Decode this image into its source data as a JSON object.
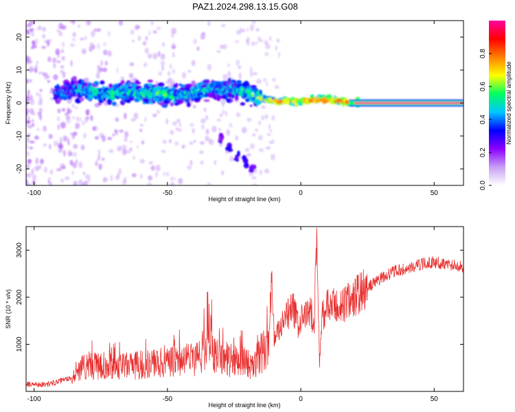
{
  "page": {
    "title": "PAZ1.2024.298.13.15.G08"
  },
  "chart_data": [
    {
      "type": "heatmap",
      "title": "PAZ1.2024.298.13.15.G08",
      "xlabel": "Height of straight line (km)",
      "ylabel": "Frequency (Hz)",
      "xlim": [
        -103,
        61
      ],
      "ylim": [
        -25,
        25
      ],
      "x_ticks": [
        -100,
        -50,
        0,
        50
      ],
      "x_tick_labels": [
        "-100",
        "-50",
        "0",
        "50"
      ],
      "y_ticks": [
        -20,
        -10,
        0,
        10,
        20
      ],
      "y_tick_labels": [
        "-20",
        "-10",
        "0",
        "10",
        "20"
      ],
      "colorbar": {
        "label": "Normalized spectral amplitude",
        "range": [
          0,
          1
        ],
        "ticks": [
          0.0,
          0.2,
          0.4,
          0.6,
          0.8
        ],
        "tick_labels": [
          "0.0",
          "0.2",
          "0.4",
          "0.6",
          "0.8"
        ],
        "colormap": [
          "#ffffff",
          "#c79ff5",
          "#8b00ff",
          "#0000ff",
          "#00c8ff",
          "#00ff60",
          "#ffff00",
          "#ff8000",
          "#ff0000",
          "#ff00a0"
        ]
      },
      "main_band": [
        {
          "x": -90,
          "f": 3.0,
          "amp": 0.35
        },
        {
          "x": -85,
          "f": 4.0,
          "amp": 0.4
        },
        {
          "x": -80,
          "f": 3.5,
          "amp": 0.45
        },
        {
          "x": -75,
          "f": 3.0,
          "amp": 0.45
        },
        {
          "x": -70,
          "f": 3.0,
          "amp": 0.5
        },
        {
          "x": -65,
          "f": 3.5,
          "amp": 0.45
        },
        {
          "x": -60,
          "f": 3.0,
          "amp": 0.5
        },
        {
          "x": -55,
          "f": 3.0,
          "amp": 0.5
        },
        {
          "x": -50,
          "f": 2.5,
          "amp": 0.5
        },
        {
          "x": -45,
          "f": 2.5,
          "amp": 0.45
        },
        {
          "x": -40,
          "f": 3.0,
          "amp": 0.45
        },
        {
          "x": -35,
          "f": 4.5,
          "amp": 0.45
        },
        {
          "x": -30,
          "f": 4.0,
          "amp": 0.4
        },
        {
          "x": -25,
          "f": 4.0,
          "amp": 0.45
        },
        {
          "x": -20,
          "f": 3.5,
          "amp": 0.5
        },
        {
          "x": -15,
          "f": 1.5,
          "amp": 0.55
        },
        {
          "x": -10,
          "f": 0.5,
          "amp": 0.7
        },
        {
          "x": -5,
          "f": 0.5,
          "amp": 0.75
        },
        {
          "x": 0,
          "f": 0.5,
          "amp": 0.7
        },
        {
          "x": 5,
          "f": 1.0,
          "amp": 0.8
        },
        {
          "x": 10,
          "f": 1.0,
          "amp": 0.85
        },
        {
          "x": 15,
          "f": 0.5,
          "amp": 0.8
        },
        {
          "x": 20,
          "f": 0.2,
          "amp": 0.85
        },
        {
          "x": 30,
          "f": 0.0,
          "amp": 1.0
        },
        {
          "x": 40,
          "f": 0.0,
          "amp": 1.0
        },
        {
          "x": 50,
          "f": 0.0,
          "amp": 1.0
        },
        {
          "x": 61,
          "f": 0.0,
          "amp": 1.0
        }
      ],
      "side_feature": [
        {
          "x": -30,
          "f": -11,
          "amp": 0.25
        },
        {
          "x": -27,
          "f": -13,
          "amp": 0.3
        },
        {
          "x": -24,
          "f": -16,
          "amp": 0.3
        },
        {
          "x": -21,
          "f": -18,
          "amp": 0.3
        },
        {
          "x": -18,
          "f": -20,
          "amp": 0.25
        }
      ]
    },
    {
      "type": "line",
      "xlabel": "Height of straight line (km)",
      "ylabel": "SNR (10 * v/v)",
      "xlim": [
        -103,
        61
      ],
      "ylim": [
        0,
        3500
      ],
      "x_ticks": [
        -100,
        -50,
        0,
        50
      ],
      "x_tick_labels": [
        "-100",
        "-50",
        "0",
        "50"
      ],
      "y_ticks": [
        1000,
        2000,
        3000
      ],
      "y_tick_labels": [
        "1000",
        "2000",
        "3000"
      ],
      "series": [
        {
          "color": "#e83030",
          "x": [
            -103,
            -95,
            -90,
            -86,
            -83,
            -80,
            -75,
            -70,
            -65,
            -60,
            -55,
            -50,
            -45,
            -40,
            -36,
            -35,
            -33,
            -30,
            -25,
            -20,
            -18,
            -15,
            -12,
            -11,
            -10,
            -8,
            -5,
            -3,
            -1,
            0,
            2,
            4,
            5,
            6,
            7,
            8,
            10,
            15,
            20,
            25,
            30,
            35,
            40,
            45,
            50,
            55,
            61
          ],
          "y": [
            150,
            150,
            220,
            300,
            500,
            560,
            520,
            540,
            540,
            560,
            600,
            600,
            660,
            700,
            900,
            1500,
            800,
            700,
            650,
            620,
            500,
            800,
            1000,
            2400,
            1100,
            1300,
            1600,
            1800,
            1400,
            1500,
            1600,
            1700,
            1300,
            3400,
            600,
            1600,
            1800,
            1800,
            2000,
            2200,
            2400,
            2550,
            2600,
            2700,
            2750,
            2700,
            2650
          ]
        }
      ]
    }
  ]
}
